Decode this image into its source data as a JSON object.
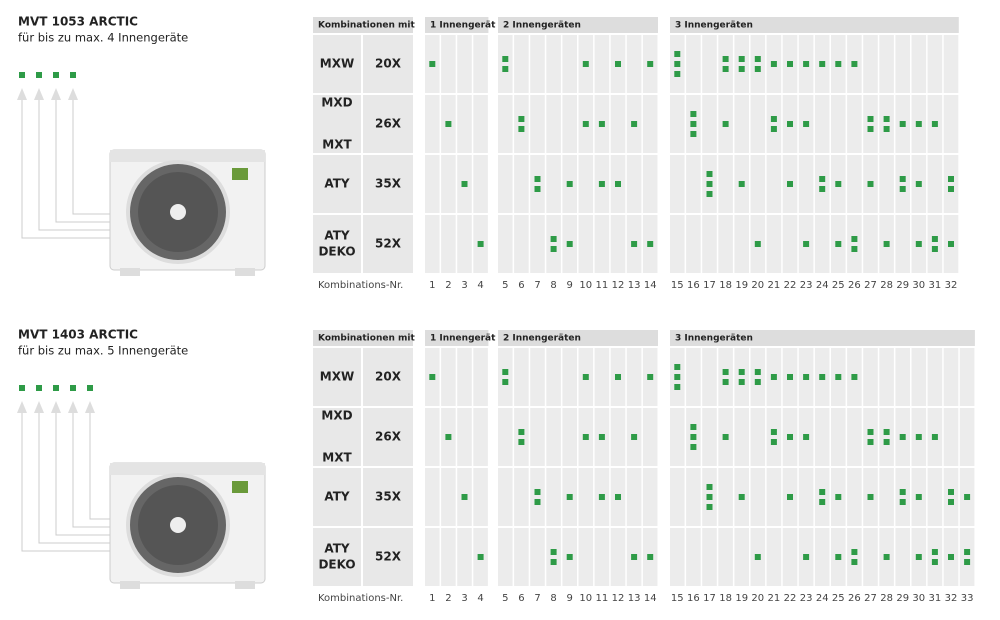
{
  "sections": [
    {
      "title": "MVT 1053 ARCTIC",
      "subtitle": "für bis zu max. 4 Innengeräte",
      "header": {
        "label": "Kombinationen mit",
        "groups": [
          "1 Innengerät",
          "2 Innengeräten",
          "3 Innengeräten"
        ]
      },
      "footer_label": "Kombinations-Nr.",
      "columns": [
        1,
        2,
        3,
        4,
        5,
        6,
        7,
        8,
        9,
        10,
        11,
        12,
        13,
        14,
        15,
        16,
        17,
        18,
        19,
        20,
        21,
        22,
        23,
        24,
        25,
        26,
        27,
        28,
        29,
        30,
        31,
        32
      ],
      "rows": [
        {
          "models": [
            "MXW"
          ],
          "size": "20X",
          "counts": [
            1,
            0,
            0,
            0,
            2,
            0,
            0,
            0,
            0,
            1,
            0,
            1,
            0,
            1,
            3,
            0,
            0,
            2,
            2,
            2,
            1,
            1,
            1,
            1,
            1,
            1,
            0,
            0,
            0,
            0,
            0,
            0
          ]
        },
        {
          "models": [
            "MXD",
            "MXT"
          ],
          "size": "26X",
          "counts": [
            0,
            1,
            0,
            0,
            0,
            2,
            0,
            0,
            0,
            1,
            1,
            0,
            1,
            0,
            0,
            3,
            0,
            1,
            0,
            0,
            2,
            1,
            1,
            0,
            0,
            0,
            2,
            2,
            1,
            1,
            1,
            0
          ]
        },
        {
          "models": [
            "ATY"
          ],
          "size": "35X",
          "counts": [
            0,
            0,
            1,
            0,
            0,
            0,
            2,
            0,
            1,
            0,
            1,
            1,
            0,
            0,
            0,
            0,
            3,
            0,
            1,
            0,
            0,
            1,
            0,
            2,
            1,
            0,
            1,
            0,
            2,
            1,
            0,
            2
          ]
        },
        {
          "models": [
            "ATY",
            "DEKO"
          ],
          "size": "52X",
          "counts": [
            0,
            0,
            0,
            1,
            0,
            0,
            0,
            2,
            1,
            0,
            0,
            0,
            1,
            1,
            0,
            0,
            0,
            0,
            0,
            1,
            0,
            0,
            1,
            0,
            1,
            2,
            0,
            1,
            0,
            1,
            2,
            1
          ]
        }
      ]
    },
    {
      "title": "MVT 1403 ARCTIC",
      "subtitle": "für bis zu max. 5 Innengeräte",
      "header": {
        "label": "Kombinationen mit",
        "groups": [
          "1 Innengerät",
          "2 Innengeräten",
          "3 Innengeräten"
        ]
      },
      "footer_label": "Kombinations-Nr.",
      "columns": [
        1,
        2,
        3,
        4,
        5,
        6,
        7,
        8,
        9,
        10,
        11,
        12,
        13,
        14,
        15,
        16,
        17,
        18,
        19,
        20,
        21,
        22,
        23,
        24,
        25,
        26,
        27,
        28,
        29,
        30,
        31,
        32,
        33
      ],
      "rows": [
        {
          "models": [
            "MXW"
          ],
          "size": "20X",
          "counts": [
            1,
            0,
            0,
            0,
            2,
            0,
            0,
            0,
            0,
            1,
            0,
            1,
            0,
            1,
            3,
            0,
            0,
            2,
            2,
            2,
            1,
            1,
            1,
            1,
            1,
            1,
            0,
            0,
            0,
            0,
            0,
            0,
            0
          ]
        },
        {
          "models": [
            "MXD",
            "MXT"
          ],
          "size": "26X",
          "counts": [
            0,
            1,
            0,
            0,
            0,
            2,
            0,
            0,
            0,
            1,
            1,
            0,
            1,
            0,
            0,
            3,
            0,
            1,
            0,
            0,
            2,
            1,
            1,
            0,
            0,
            0,
            2,
            2,
            1,
            1,
            1,
            0,
            0
          ]
        },
        {
          "models": [
            "ATY"
          ],
          "size": "35X",
          "counts": [
            0,
            0,
            1,
            0,
            0,
            0,
            2,
            0,
            1,
            0,
            1,
            1,
            0,
            0,
            0,
            0,
            3,
            0,
            1,
            0,
            0,
            1,
            0,
            2,
            1,
            0,
            1,
            0,
            2,
            1,
            0,
            2,
            1
          ]
        },
        {
          "models": [
            "ATY",
            "DEKO"
          ],
          "size": "52X",
          "counts": [
            0,
            0,
            0,
            1,
            0,
            0,
            0,
            2,
            1,
            0,
            0,
            0,
            1,
            1,
            0,
            0,
            0,
            0,
            0,
            1,
            0,
            0,
            1,
            0,
            1,
            2,
            0,
            1,
            0,
            1,
            2,
            1,
            2
          ]
        }
      ]
    }
  ]
}
